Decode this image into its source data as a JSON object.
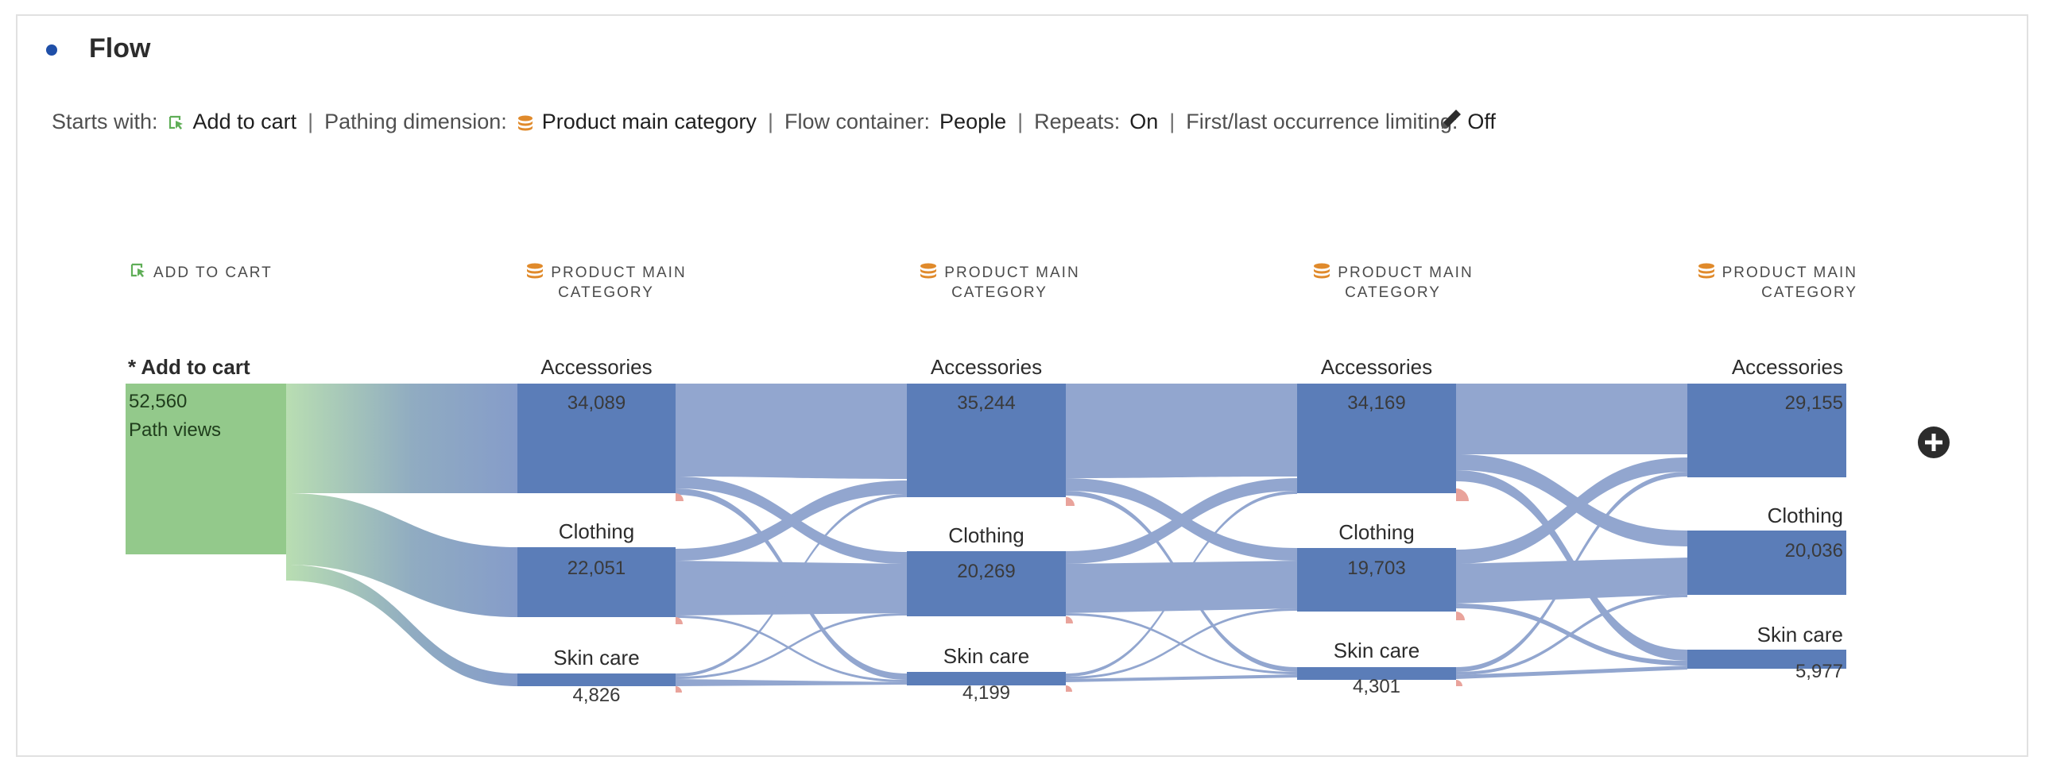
{
  "panel": {
    "title": "Flow",
    "summary": {
      "starts_with_label": "Starts with:",
      "starts_with_value": "Add to cart",
      "pathing_label": "Pathing dimension:",
      "pathing_value": "Product main category",
      "container_label": "Flow container:",
      "container_value": "People",
      "repeats_label": "Repeats:",
      "repeats_value": "On",
      "limiting_label": "First/last occurrence limiting:",
      "limiting_value": "Off",
      "separator": "|"
    }
  },
  "columns": [
    {
      "header_line1": "ADD TO CART",
      "header_line2": "",
      "icon": "event-icon"
    },
    {
      "header_line1": "PRODUCT MAIN",
      "header_line2": "CATEGORY",
      "icon": "dimension-icon"
    },
    {
      "header_line1": "PRODUCT MAIN",
      "header_line2": "CATEGORY",
      "icon": "dimension-icon"
    },
    {
      "header_line1": "PRODUCT MAIN",
      "header_line2": "CATEGORY",
      "icon": "dimension-icon"
    },
    {
      "header_line1": "PRODUCT MAIN",
      "header_line2": "CATEGORY",
      "icon": "dimension-icon"
    }
  ],
  "start_node": {
    "label": "* Add to cart",
    "value": "52,560",
    "value_caption": "Path views"
  },
  "nodes": [
    [
      {
        "label": "Accessories",
        "value": "34,089"
      },
      {
        "label": "Clothing",
        "value": "22,051"
      },
      {
        "label": "Skin care",
        "value": "4,826"
      }
    ],
    [
      {
        "label": "Accessories",
        "value": "35,244"
      },
      {
        "label": "Clothing",
        "value": "20,269"
      },
      {
        "label": "Skin care",
        "value": "4,199"
      }
    ],
    [
      {
        "label": "Accessories",
        "value": "34,169"
      },
      {
        "label": "Clothing",
        "value": "19,703"
      },
      {
        "label": "Skin care",
        "value": "4,301"
      }
    ],
    [
      {
        "label": "Accessories",
        "value": "29,155"
      },
      {
        "label": "Clothing",
        "value": "20,036"
      },
      {
        "label": "Skin care",
        "value": "5,977"
      }
    ]
  ],
  "colors": {
    "start_node": "#93c98b",
    "node": "#5b7db8",
    "link": "#7f97c7",
    "exit_marker": "#e9a39b",
    "bullet": "#1f4fa8",
    "event_icon": "#5fae57",
    "dimension_icon": "#e08a2b"
  },
  "icons": {
    "edit": "pencil-icon",
    "add": "plus-circle-icon"
  }
}
